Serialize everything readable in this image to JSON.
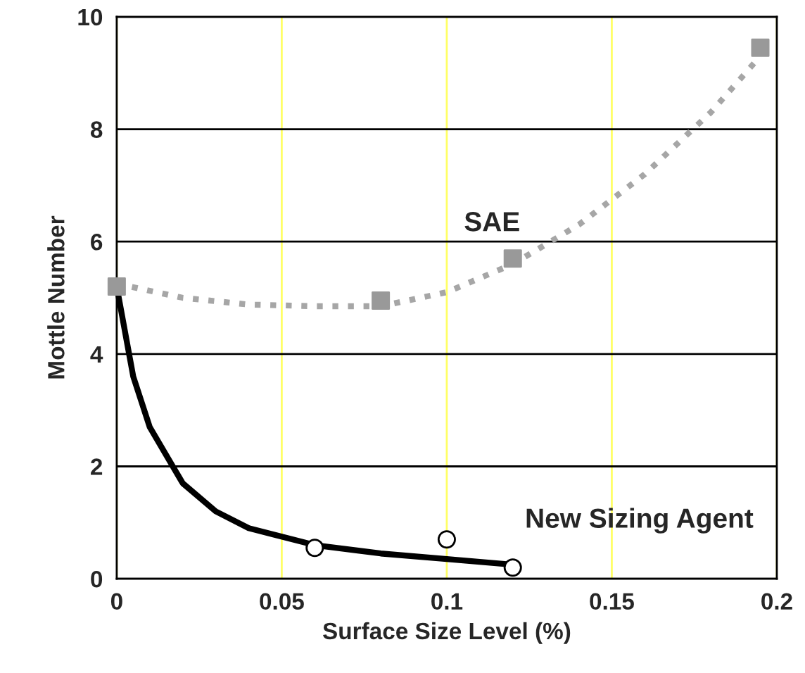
{
  "chart_data": {
    "type": "scatter",
    "xlabel": "Surface Size Level (%)",
    "ylabel": "Mottle Number",
    "xlim": [
      0,
      0.2
    ],
    "xticks": [
      {
        "value": 0,
        "label": "0"
      },
      0.05,
      0.1,
      0.15,
      0.2
    ],
    "ylim": [
      0,
      10
    ],
    "yticks": [
      0,
      2,
      4,
      6,
      8,
      10
    ],
    "grid": true,
    "legend": false,
    "series": [
      {
        "type": "line",
        "color": "#a6a6a6",
        "line_style": "dotted",
        "marker": "none",
        "x": [
          0,
          0.02,
          0.04,
          0.06,
          0.08,
          0.1,
          0.12,
          0.14,
          0.16,
          0.18,
          0.195
        ],
        "values": [
          5.25,
          5.0,
          4.88,
          4.85,
          4.85,
          5.1,
          5.6,
          6.3,
          7.2,
          8.3,
          9.3
        ]
      },
      {
        "type": "line",
        "color": "#000000",
        "line_style": "solid",
        "marker": "none",
        "x": [
          0,
          0.005,
          0.01,
          0.02,
          0.03,
          0.04,
          0.06,
          0.08,
          0.1,
          0.12
        ],
        "values": [
          5.2,
          3.6,
          2.7,
          1.7,
          1.2,
          0.9,
          0.6,
          0.45,
          0.35,
          0.25
        ]
      },
      {
        "name": "New Sizing Agent",
        "color": "#000000",
        "marker": "circle",
        "x": [
          0.06,
          0.1,
          0.12
        ],
        "values": [
          0.55,
          0.7,
          0.2
        ]
      },
      {
        "name": "SAE",
        "color": "#999999",
        "marker": "square",
        "x": [
          0,
          0.08,
          0.12,
          0.195
        ],
        "values": [
          5.2,
          4.95,
          5.7,
          9.45
        ]
      }
    ]
  }
}
